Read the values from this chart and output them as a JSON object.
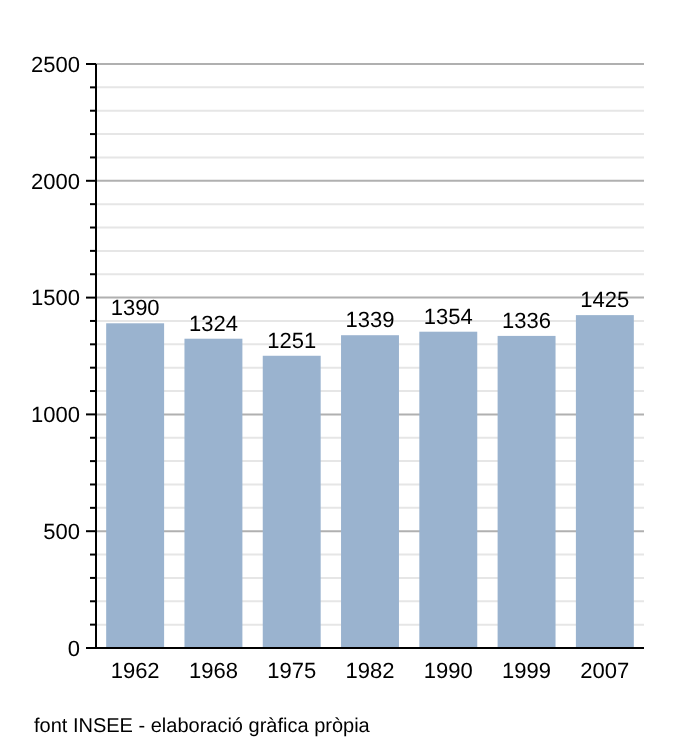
{
  "chart_data": {
    "type": "bar",
    "categories": [
      "1962",
      "1968",
      "1975",
      "1982",
      "1990",
      "1999",
      "2007"
    ],
    "values": [
      1390,
      1324,
      1251,
      1339,
      1354,
      1336,
      1425
    ],
    "color": "#9ab3cf",
    "ylim": [
      0,
      2500
    ],
    "yticks": [
      0,
      {
        "value": 100,
        "label": null
      },
      {
        "value": 200,
        "label": null
      },
      {
        "value": 300,
        "label": null
      },
      {
        "value": 400,
        "label": null
      },
      500,
      {
        "value": 600,
        "label": null
      },
      {
        "value": 700,
        "label": null
      },
      {
        "value": 800,
        "label": null
      },
      {
        "value": 900,
        "label": null
      },
      1000,
      {
        "value": 1100,
        "label": null
      },
      {
        "value": 1200,
        "label": null
      },
      {
        "value": 1300,
        "label": null
      },
      {
        "value": 1400,
        "label": null
      },
      1500,
      {
        "value": 1600,
        "label": null
      },
      {
        "value": 1700,
        "label": null
      },
      {
        "value": 1800,
        "label": null
      },
      {
        "value": 1900,
        "label": null
      },
      2000,
      {
        "value": 2100,
        "label": null
      },
      {
        "value": 2200,
        "label": null
      },
      {
        "value": 2300,
        "label": null
      },
      {
        "value": 2400,
        "label": null
      },
      2500
    ],
    "grid": true,
    "data_labels": true,
    "annotations": [
      "font INSEE - elaboració gràfica pròpia"
    ]
  }
}
